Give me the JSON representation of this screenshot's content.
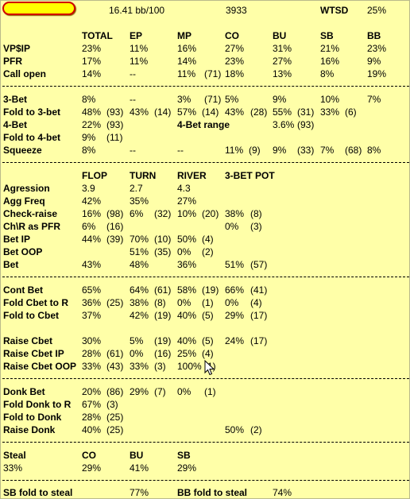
{
  "header": {
    "bb100": "16.41 bb/100",
    "hands": "3933",
    "wtsd_label": "WTSD",
    "wtsd_value": "25%"
  },
  "preflop": {
    "cols": [
      "TOTAL",
      "EP",
      "MP",
      "CO",
      "BU",
      "SB",
      "BB"
    ],
    "rows": [
      {
        "label": "VP$IP",
        "cells": [
          "23%",
          "11%",
          "16%",
          "27%",
          "31%",
          "21%",
          "23%"
        ]
      },
      {
        "label": "PFR",
        "cells": [
          "17%",
          "11%",
          "14%",
          "23%",
          "27%",
          "16%",
          "9%"
        ]
      },
      {
        "label": "Call open",
        "cells": [
          "14%",
          "--",
          "11%",
          "(71)",
          "18%",
          "13%",
          "8%",
          "19%"
        ]
      }
    ]
  },
  "threebet": {
    "rows": [
      {
        "label": "3-Bet",
        "cells": [
          "8%",
          "--",
          "3%",
          "(71)",
          "5%",
          "9%",
          "10%",
          "7%"
        ]
      },
      {
        "label": "Fold to 3-bet",
        "cells": [
          "48%",
          "(93)",
          "43%",
          "(14)",
          "57%",
          "(14)",
          "43%",
          "(28)",
          "55%",
          "(31)",
          "33%",
          "(6)"
        ]
      },
      {
        "label": "4-Bet",
        "cells": [
          "22%",
          "(93)",
          "4-Bet range",
          "3.6%",
          "(93)"
        ]
      },
      {
        "label": "Fold to 4-bet",
        "cells": [
          "9%",
          "(11)"
        ]
      },
      {
        "label": "Squeeze",
        "cells": [
          "8%",
          "--",
          "--",
          "11%",
          "(9)",
          "9%",
          "(33)",
          "7%",
          "(68)",
          "8%"
        ]
      }
    ]
  },
  "postflop": {
    "cols": [
      "FLOP",
      "TURN",
      "RIVER",
      "3-BET POT"
    ],
    "rows": [
      {
        "label": "Agression",
        "cells": [
          "3.9",
          "2.7",
          "4.3"
        ]
      },
      {
        "label": "Agg Freq",
        "cells": [
          "42%",
          "35%",
          "27%"
        ]
      },
      {
        "label": "Check-raise",
        "cells": [
          "16%",
          "(98)",
          "6%",
          "(32)",
          "10%",
          "(20)",
          "38%",
          "(8)"
        ]
      },
      {
        "label": "Ch\\R as PFR",
        "cells": [
          "6%",
          "(16)",
          "0%",
          "(3)"
        ]
      },
      {
        "label": "Bet IP",
        "cells": [
          "44%",
          "(39)",
          "70%",
          "(10)",
          "50%",
          "(4)"
        ]
      },
      {
        "label": "Bet OOP",
        "cells": [
          "51%",
          "(35)",
          "0%",
          "(2)"
        ]
      },
      {
        "label": "Bet",
        "cells": [
          "43%",
          "48%",
          "36%",
          "51%",
          "(57)"
        ]
      }
    ]
  },
  "cbet": {
    "rows": [
      {
        "label": "Cont Bet",
        "cells": [
          "65%",
          "64%",
          "(61)",
          "58%",
          "(19)",
          "66%",
          "(41)"
        ]
      },
      {
        "label": "Fold Cbet to R",
        "cells": [
          "36%",
          "(25)",
          "38%",
          "(8)",
          "0%",
          "(1)",
          "0%",
          "(4)"
        ]
      },
      {
        "label": "Fold to Cbet",
        "cells": [
          "37%",
          "42%",
          "(19)",
          "40%",
          "(5)",
          "29%",
          "(17)"
        ]
      },
      {
        "label": "Raise Cbet",
        "cells": [
          "30%",
          "5%",
          "(19)",
          "40%",
          "(5)",
          "24%",
          "(17)"
        ]
      },
      {
        "label": "Raise Cbet IP",
        "cells": [
          "28%",
          "(61)",
          "0%",
          "(16)",
          "25%",
          "(4)"
        ]
      },
      {
        "label": "Raise Cbet OOP",
        "cells": [
          "33%",
          "(43)",
          "33%",
          "(3)",
          "100%",
          "(1)"
        ]
      }
    ]
  },
  "donk": {
    "rows": [
      {
        "label": "Donk Bet",
        "cells": [
          "20%",
          "(86)",
          "29%",
          "(7)",
          "0%",
          "(1)"
        ]
      },
      {
        "label": "Fold Donk to R",
        "cells": [
          "67%",
          "(3)"
        ]
      },
      {
        "label": "Fold to Donk",
        "cells": [
          "28%",
          "(25)"
        ]
      },
      {
        "label": "Raise Donk",
        "cells": [
          "40%",
          "(25)",
          "50%",
          "(2)"
        ]
      }
    ]
  },
  "steal": {
    "header": [
      "Steal",
      "CO",
      "BU",
      "SB"
    ],
    "values": [
      "33%",
      "29%",
      "41%",
      "29%"
    ]
  },
  "blinds": {
    "sb_label": "SB fold to steal",
    "sb_value": "77%",
    "bb_label": "BB fold to steal",
    "bb_value": "74%"
  }
}
